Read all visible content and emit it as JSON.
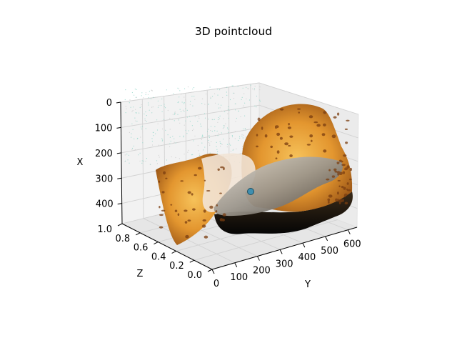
{
  "chart_data": {
    "type": "scatter",
    "projection": "3d",
    "title": "3D pointcloud",
    "xlabel": "Y",
    "ylabel": "Z",
    "zlabel": "X",
    "x_axis": {
      "label": "Y",
      "ticks": [
        "0",
        "100",
        "200",
        "300",
        "400",
        "500",
        "600"
      ],
      "range": [
        0,
        640
      ]
    },
    "y_axis": {
      "label": "Z",
      "ticks": [
        "0.0",
        "0.2",
        "0.4",
        "0.6",
        "0.8",
        "1.0"
      ],
      "range": [
        0,
        1
      ]
    },
    "z_axis": {
      "label": "X",
      "ticks": [
        "0",
        "100",
        "200",
        "300",
        "400"
      ],
      "range": [
        480,
        0
      ],
      "inverted": true
    },
    "grid": true,
    "colors": {
      "sponge_light": "#f2b24a",
      "sponge_mid": "#d9842a",
      "sponge_dark": "#8a4a12",
      "fish": "#b8b2a8",
      "shadow": "#141414",
      "sparse_points": "#8fd6c8"
    }
  }
}
